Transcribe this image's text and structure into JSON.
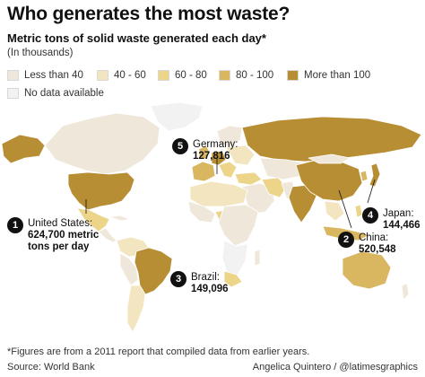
{
  "title": "Who generates the most waste?",
  "subtitle": "Metric tons of solid waste generated each day*",
  "units": "(In thousands)",
  "legend": [
    {
      "label": "Less than 40",
      "color": "#efe7da"
    },
    {
      "label": "40 - 60",
      "color": "#f3e5bf"
    },
    {
      "label": "60 - 80",
      "color": "#ecd489"
    },
    {
      "label": "80 - 100",
      "color": "#d9b660"
    },
    {
      "label": "More than 100",
      "color": "#b88e35"
    },
    {
      "label": "No data available",
      "color": "#f2f2f2"
    }
  ],
  "callouts": [
    {
      "num": "1",
      "label": "United States:",
      "value_lines": [
        "624,700 metric",
        "tons per day"
      ]
    },
    {
      "num": "2",
      "label": "China:",
      "value_lines": [
        "520,548"
      ]
    },
    {
      "num": "3",
      "label": "Brazil:",
      "value_lines": [
        "149,096"
      ]
    },
    {
      "num": "4",
      "label": "Japan:",
      "value_lines": [
        "144,466"
      ]
    },
    {
      "num": "5",
      "label": "Germany:",
      "value_lines": [
        "127,816"
      ]
    }
  ],
  "footnote": "*Figures are from a 2011 report that compiled data from earlier years.",
  "source": "Source: World Bank",
  "credit": "Angelica Quintero / @latimesgraphics"
}
